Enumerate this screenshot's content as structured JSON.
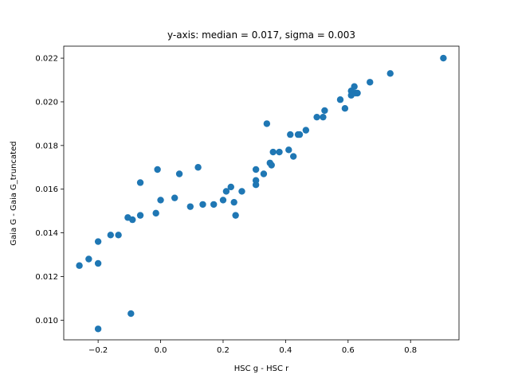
{
  "chart_data": {
    "type": "scatter",
    "title": "y-axis: median = 0.017, sigma = 0.003",
    "xlabel": "HSC g - HSC r",
    "ylabel": "Gaia G - Gaia G_truncated",
    "xlim": [
      -0.31,
      0.955
    ],
    "ylim": [
      0.0091,
      0.02255
    ],
    "xticks": [
      -0.2,
      0.0,
      0.2,
      0.4,
      0.6,
      0.8
    ],
    "xtick_labels": [
      "−0.2",
      "0.0",
      "0.2",
      "0.4",
      "0.6",
      "0.8"
    ],
    "yticks": [
      0.01,
      0.012,
      0.014,
      0.016,
      0.018,
      0.02,
      0.022
    ],
    "ytick_labels": [
      "0.010",
      "0.012",
      "0.014",
      "0.016",
      "0.018",
      "0.020",
      "0.022"
    ],
    "grid": false,
    "legend": "none",
    "marker_color": "#1f77b4",
    "points": [
      [
        -0.26,
        0.0125
      ],
      [
        -0.23,
        0.0128
      ],
      [
        -0.2,
        0.0126
      ],
      [
        -0.2,
        0.0136
      ],
      [
        -0.2,
        0.0096
      ],
      [
        -0.16,
        0.0139
      ],
      [
        -0.135,
        0.0139
      ],
      [
        -0.105,
        0.0147
      ],
      [
        -0.09,
        0.0146
      ],
      [
        -0.095,
        0.0103
      ],
      [
        -0.065,
        0.0148
      ],
      [
        -0.065,
        0.0163
      ],
      [
        -0.015,
        0.0149
      ],
      [
        -0.01,
        0.0169
      ],
      [
        0.0,
        0.0155
      ],
      [
        0.045,
        0.0156
      ],
      [
        0.06,
        0.0167
      ],
      [
        0.095,
        0.0152
      ],
      [
        0.12,
        0.017
      ],
      [
        0.135,
        0.0153
      ],
      [
        0.17,
        0.0153
      ],
      [
        0.2,
        0.0155
      ],
      [
        0.21,
        0.0159
      ],
      [
        0.225,
        0.0161
      ],
      [
        0.235,
        0.0154
      ],
      [
        0.24,
        0.0148
      ],
      [
        0.26,
        0.0159
      ],
      [
        0.305,
        0.0162
      ],
      [
        0.305,
        0.0164
      ],
      [
        0.305,
        0.0169
      ],
      [
        0.33,
        0.0167
      ],
      [
        0.34,
        0.019
      ],
      [
        0.35,
        0.0172
      ],
      [
        0.355,
        0.0171
      ],
      [
        0.36,
        0.0177
      ],
      [
        0.38,
        0.0177
      ],
      [
        0.41,
        0.0178
      ],
      [
        0.415,
        0.0185
      ],
      [
        0.425,
        0.0175
      ],
      [
        0.44,
        0.0185
      ],
      [
        0.445,
        0.0185
      ],
      [
        0.465,
        0.0187
      ],
      [
        0.5,
        0.0193
      ],
      [
        0.52,
        0.0193
      ],
      [
        0.525,
        0.0196
      ],
      [
        0.575,
        0.0201
      ],
      [
        0.59,
        0.0197
      ],
      [
        0.61,
        0.0203
      ],
      [
        0.61,
        0.0205
      ],
      [
        0.615,
        0.0204
      ],
      [
        0.62,
        0.0207
      ],
      [
        0.625,
        0.0204
      ],
      [
        0.63,
        0.0204
      ],
      [
        0.67,
        0.0209
      ],
      [
        0.735,
        0.0213
      ],
      [
        0.905,
        0.022
      ]
    ]
  }
}
